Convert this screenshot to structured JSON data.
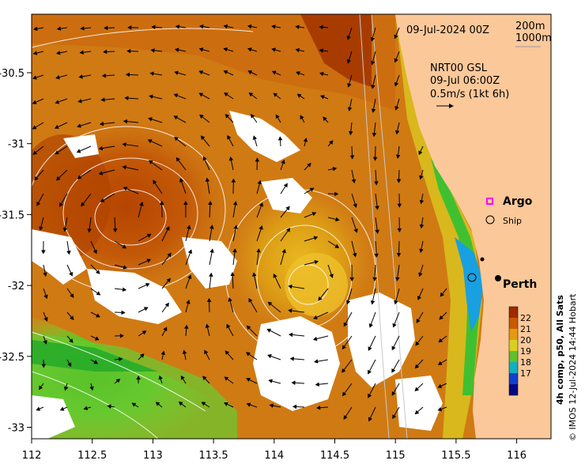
{
  "header": {
    "date": "09-Jul-2024 00Z",
    "contour_200": "200m",
    "contour_1000": "1000m"
  },
  "currents": {
    "line1": "NRT00 GSL",
    "line2": "09-Jul 06:00Z",
    "line3": "0.5m/s (1kt 6h)"
  },
  "legend": {
    "argo": "Argo",
    "ship": "Ship",
    "argo_color": "#ff00ff"
  },
  "place": {
    "perth": "Perth"
  },
  "colorbar": {
    "label": "4h comp, p50, All Sats",
    "ticks": [
      "22",
      "21",
      "20",
      "19",
      "18",
      "17"
    ]
  },
  "credit": "© IMOS 12-Jul-2024 14:44 Hobart",
  "axes": {
    "x_ticks": [
      "112",
      "112.5",
      "113",
      "113.5",
      "114",
      "114.5",
      "115",
      "115.5",
      "116"
    ],
    "y_ticks": [
      "-30.5",
      "-31",
      "-31.5",
      "-32",
      "-32.5",
      "-33"
    ]
  },
  "colors": {
    "land": "#fbc89a",
    "sst_warm": "#b04a00",
    "sst_mid": "#e08a10",
    "sst_cool": "#38c020"
  }
}
